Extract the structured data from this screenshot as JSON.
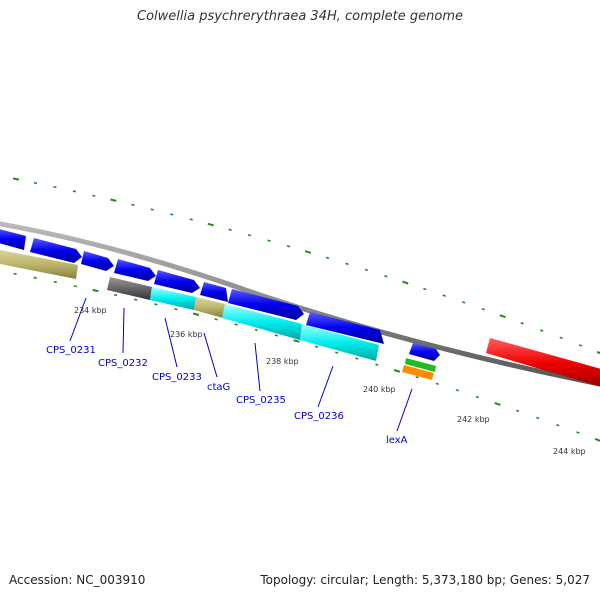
{
  "title": "Colwellia psychrerythraea 34H, complete genome",
  "footer": {
    "accession": "Accession: NC_003910",
    "topology": "Topology: circular; Length: 5,373,180 bp; Genes: 5,027"
  },
  "colors": {
    "backbone": "#888888",
    "blue_cds": "#0000ee",
    "cyan_feature": "#00eeee",
    "khaki_feature": "#bdb76b",
    "gray_feature": "#666666",
    "red_feature": "#ee0000",
    "green_feature": "#22bb22",
    "orange_feature": "#ff8c00",
    "tick": "#228b22",
    "gene_label": "#0000cc"
  },
  "kbp_labels": [
    "234 kbp",
    "236 kbp",
    "238 kbp",
    "240 kbp",
    "242 kbp",
    "244 kbp"
  ],
  "gene_labels": [
    "CPS_0231",
    "CPS_0232",
    "CPS_0233",
    "ctaG",
    "CPS_0235",
    "CPS_0236",
    "lexA"
  ]
}
